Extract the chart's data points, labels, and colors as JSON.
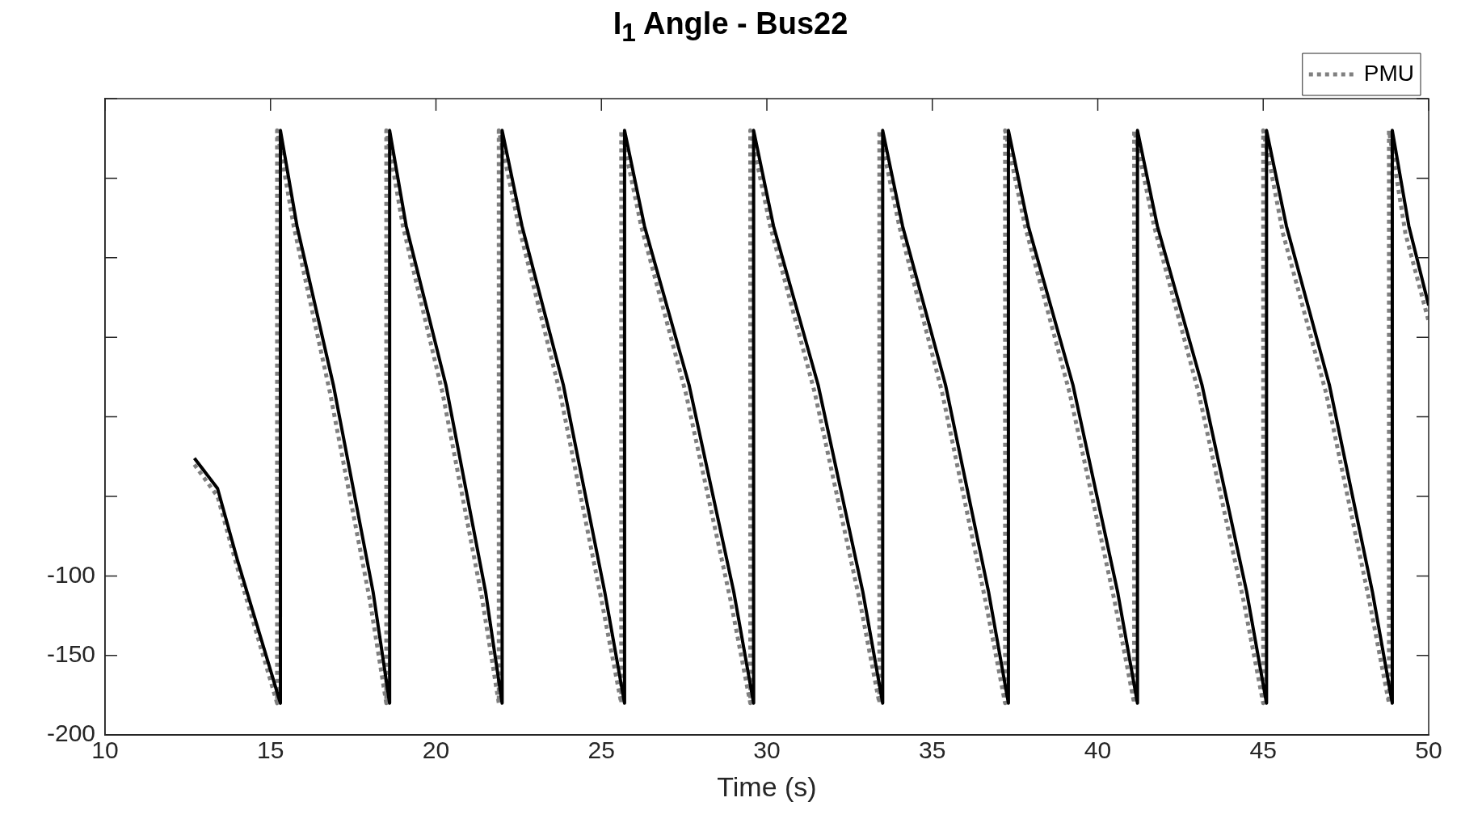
{
  "chart_data": {
    "type": "line",
    "title": "I$_{1}$ Angle - Bus22",
    "xlabel": "Time (s)",
    "xlim": [
      10,
      50
    ],
    "xticks": [
      10,
      15,
      20,
      25,
      30,
      35,
      40,
      45,
      50
    ],
    "ylim": [
      -200,
      200
    ],
    "yticks": [
      -200,
      -150,
      -100,
      {
        "value": -50,
        "label": null
      },
      {
        "value": 0,
        "label": null
      },
      {
        "value": 50,
        "label": null
      },
      {
        "value": 100,
        "label": null
      },
      {
        "value": 150,
        "label": null
      },
      {
        "value": 200,
        "label": null
      }
    ],
    "grid": false,
    "legend": "top right",
    "marker": "none",
    "series": [
      {
        "color": "#000000",
        "line_style": "solid",
        "x": [
          12.7,
          13.4,
          14.0,
          15.3,
          15.3,
          15.8,
          16.9,
          18.1,
          18.6,
          18.6,
          19.1,
          20.3,
          21.5,
          22.0,
          22.0,
          22.6,
          23.85,
          25.1,
          25.7,
          25.7,
          26.3,
          27.65,
          29.0,
          29.6,
          29.6,
          30.2,
          31.55,
          32.9,
          33.5,
          33.5,
          34.1,
          35.4,
          36.7,
          37.3,
          37.3,
          37.9,
          39.25,
          40.6,
          41.2,
          41.2,
          41.8,
          43.15,
          44.5,
          45.1,
          45.1,
          45.7,
          47.0,
          48.3,
          48.9,
          48.9,
          49.4,
          50.0
        ],
        "values": [
          -26,
          -45,
          -90,
          -180,
          180,
          120,
          20,
          -110,
          -180,
          180,
          120,
          20,
          -110,
          -180,
          180,
          120,
          20,
          -110,
          -180,
          180,
          120,
          20,
          -110,
          -180,
          180,
          120,
          20,
          -110,
          -180,
          180,
          120,
          20,
          -110,
          -180,
          180,
          120,
          20,
          -110,
          -180,
          180,
          120,
          20,
          -110,
          -180,
          180,
          120,
          20,
          -110,
          -180,
          180,
          120,
          70
        ]
      },
      {
        "name": "PMU",
        "color": "#808080",
        "line_style": "dotted",
        "x": [
          12.7,
          13.4,
          14.0,
          15.2,
          15.2,
          15.7,
          16.8,
          18.0,
          18.5,
          18.5,
          19.0,
          20.2,
          21.4,
          21.9,
          21.9,
          22.5,
          23.75,
          25.0,
          25.6,
          25.6,
          26.2,
          27.55,
          28.9,
          29.5,
          29.5,
          30.1,
          31.45,
          32.8,
          33.4,
          33.4,
          34.0,
          35.3,
          36.6,
          37.2,
          37.2,
          37.8,
          39.15,
          40.5,
          41.1,
          41.1,
          41.7,
          43.05,
          44.4,
          45.0,
          45.0,
          45.6,
          46.9,
          48.2,
          48.8,
          48.8,
          49.3,
          50.0
        ],
        "values": [
          -30,
          -50,
          -95,
          -180,
          180,
          120,
          15,
          -115,
          -180,
          180,
          120,
          15,
          -115,
          -180,
          180,
          120,
          15,
          -115,
          -180,
          180,
          120,
          15,
          -115,
          -180,
          180,
          120,
          15,
          -115,
          -180,
          180,
          120,
          15,
          -115,
          -180,
          180,
          120,
          15,
          -115,
          -180,
          180,
          120,
          15,
          -115,
          -180,
          180,
          115,
          15,
          -115,
          -180,
          180,
          115,
          60
        ]
      }
    ]
  }
}
